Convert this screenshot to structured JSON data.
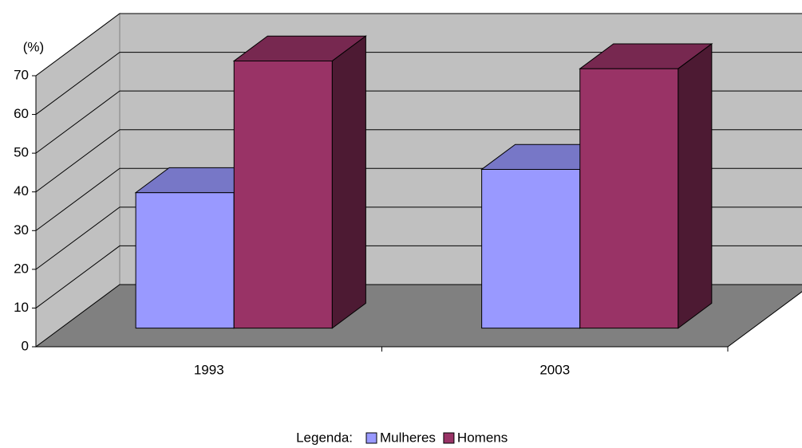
{
  "chart_data": {
    "type": "bar3d",
    "y_label": "(%)",
    "legend_title": "Legenda:",
    "categories": [
      "1993",
      "2003"
    ],
    "series": [
      {
        "name": "Mulheres",
        "color": "#9999ff",
        "values": [
          35,
          41
        ]
      },
      {
        "name": "Homens",
        "color": "#993366",
        "values": [
          69,
          67
        ]
      }
    ],
    "ylim": [
      0,
      70
    ],
    "yticks": [
      0,
      10,
      20,
      30,
      40,
      50,
      60,
      70
    ],
    "grid": true,
    "legend": "bottom"
  }
}
